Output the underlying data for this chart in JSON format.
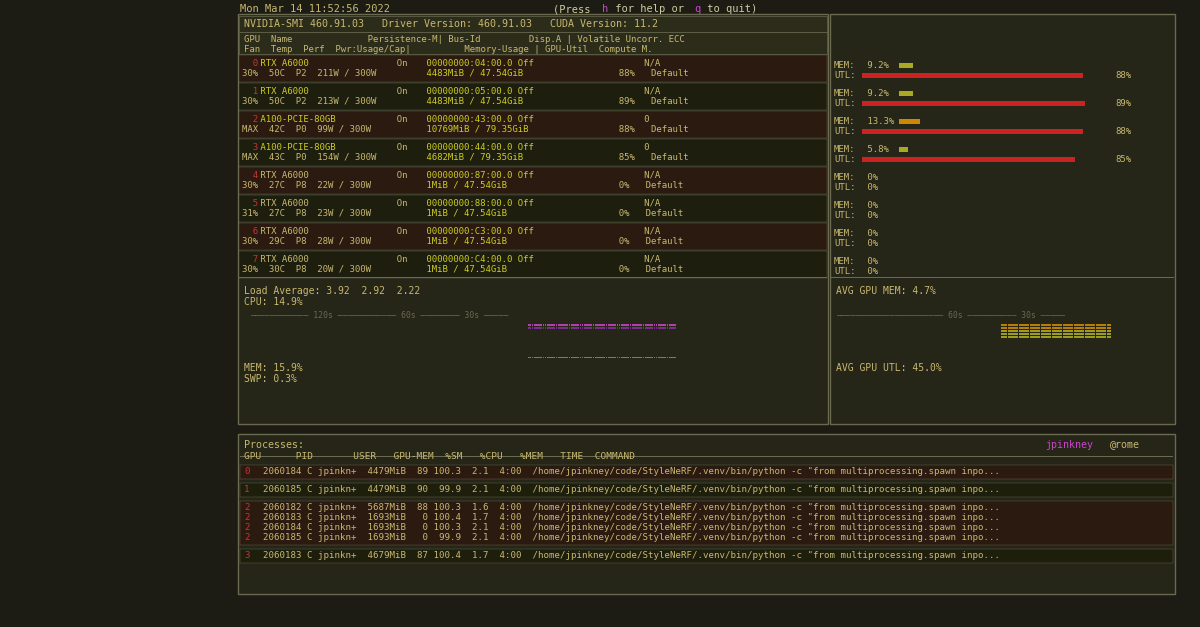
{
  "bg_color": "#1c1c14",
  "panel_bg": "#252518",
  "border_color": "#6a6a50",
  "text_main": "#c8b870",
  "text_white": "#d0cca0",
  "text_red": "#cc3333",
  "text_yellow": "#cccc22",
  "text_pink": "#cc44cc",
  "text_cyan": "#44bbbb",
  "bar_red": "#cc2222",
  "bar_yellow_mem0": "#aaaa22",
  "bar_yellow_mem2": "#cc8800",
  "gpus": [
    {
      "id": "0",
      "name": "RTX A6000",
      "fan": "30%",
      "temp": "50C",
      "perf": "P2",
      "power": "211W / 300W",
      "bus": "00000000:04:00.0 Off",
      "mem": "4483MiB / 47.54GiB",
      "util": "88%",
      "ecc": "N/A",
      "compute": "Default",
      "mem_pct": 9.2,
      "util_pct": 88,
      "mem_col": "#aaaa22"
    },
    {
      "id": "1",
      "name": "RTX A6000",
      "fan": "30%",
      "temp": "50C",
      "perf": "P2",
      "power": "213W / 300W",
      "bus": "00000000:05:00.0 Off",
      "mem": "4483MiB / 47.54GiB",
      "util": "89%",
      "ecc": "N/A",
      "compute": "Default",
      "mem_pct": 9.2,
      "util_pct": 89,
      "mem_col": "#aaaa22"
    },
    {
      "id": "2",
      "name": "A100-PCIE-80GB",
      "fan": "MAX",
      "temp": "42C",
      "perf": "P0",
      "power": "99W / 300W",
      "bus": "00000000:43:00.0 Off",
      "mem": "10769MiB / 79.35GiB",
      "util": "88%",
      "ecc": "0",
      "compute": "Default",
      "mem_pct": 13.3,
      "util_pct": 88,
      "mem_col": "#cc8800"
    },
    {
      "id": "3",
      "name": "A100-PCIE-80GB",
      "fan": "MAX",
      "temp": "43C",
      "perf": "P0",
      "power": "154W / 300W",
      "bus": "00000000:44:00.0 Off",
      "mem": "4682MiB / 79.35GiB",
      "util": "85%",
      "ecc": "0",
      "compute": "Default",
      "mem_pct": 5.8,
      "util_pct": 85,
      "mem_col": "#aaaa22"
    },
    {
      "id": "4",
      "name": "RTX A6000",
      "fan": "30%",
      "temp": "27C",
      "perf": "P8",
      "power": "22W / 300W",
      "bus": "00000000:87:00.0 Off",
      "mem": "1MiB / 47.54GiB",
      "util": "0%",
      "ecc": "N/A",
      "compute": "Default",
      "mem_pct": 0,
      "util_pct": 0,
      "mem_col": "#aaaa22"
    },
    {
      "id": "5",
      "name": "RTX A6000",
      "fan": "31%",
      "temp": "27C",
      "perf": "P8",
      "power": "23W / 300W",
      "bus": "00000000:88:00.0 Off",
      "mem": "1MiB / 47.54GiB",
      "util": "0%",
      "ecc": "N/A",
      "compute": "Default",
      "mem_pct": 0,
      "util_pct": 0,
      "mem_col": "#aaaa22"
    },
    {
      "id": "6",
      "name": "RTX A6000",
      "fan": "30%",
      "temp": "29C",
      "perf": "P8",
      "power": "28W / 300W",
      "bus": "00000000:C3:00.0 Off",
      "mem": "1MiB / 47.54GiB",
      "util": "0%",
      "ecc": "N/A",
      "compute": "Default",
      "mem_pct": 0,
      "util_pct": 0,
      "mem_col": "#aaaa22"
    },
    {
      "id": "7",
      "name": "RTX A6000",
      "fan": "30%",
      "temp": "30C",
      "perf": "P8",
      "power": "20W / 300W",
      "bus": "00000000:C4:00.0 Off",
      "mem": "1MiB / 47.54GiB",
      "util": "0%",
      "ecc": "N/A",
      "compute": "Default",
      "mem_pct": 0,
      "util_pct": 0,
      "mem_col": "#aaaa22"
    }
  ],
  "procs": [
    {
      "gpu": "0",
      "lines": [
        "0  2060184 C jpinkn+  4479MiB  89 100.3  2.1  4:00  /home/jpinkney/code/StyleNeRF/.venv/bin/python -c \"from multiprocessing.spawn inpo..."
      ]
    },
    {
      "gpu": "1",
      "lines": [
        "1  2060185 C jpinkn+  4479MiB  90  99.9  2.1  4:00  /home/jpinkney/code/StyleNeRF/.venv/bin/python -c \"from multiprocessing.spawn inpo..."
      ]
    },
    {
      "gpu": "2",
      "lines": [
        "2  2060182 C jpinkn+  5687MiB  88 100.3  1.6  4:00  /home/jpinkney/code/StyleNeRF/.venv/bin/python -c \"from multiprocessing.spawn inpo...",
        "2  2060183 C jpinkn+  1693MiB   0 100.4  1.7  4:00  /home/jpinkney/code/StyleNeRF/.venv/bin/python -c \"from multiprocessing.spawn inpo...",
        "2  2060184 C jpinkn+  1693MiB   0 100.3  2.1  4:00  /home/jpinkney/code/StyleNeRF/.venv/bin/python -c \"from multiprocessing.spawn inpo...",
        "2  2060185 C jpinkn+  1693MiB   0  99.9  2.1  4:00  /home/jpinkney/code/StyleNeRF/.venv/bin/python -c \"from multiprocessing.spawn inpo..."
      ]
    },
    {
      "gpu": "3",
      "lines": [
        "3  2060183 C jpinkn+  4679MiB  87 100.4  1.7  4:00  /home/jpinkney/code/StyleNeRF/.venv/bin/python -c \"from multiprocessing.spawn inpo..."
      ]
    }
  ]
}
